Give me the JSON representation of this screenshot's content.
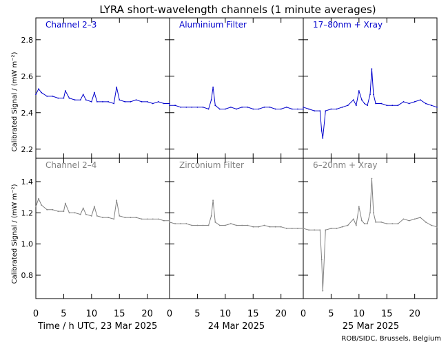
{
  "title": "LYRA short-wavelength channels (1 minute averages)",
  "ylabel": "Calibrated Signal  / (mW m⁻²)",
  "credit": "ROB/SIDC, Brussels, Belgium",
  "colors": {
    "top": "#0000cc",
    "bottom": "#808080",
    "axis": "#000000"
  },
  "rows": [
    {
      "ylim": [
        2.15,
        2.92
      ],
      "yticks": [
        "2.2",
        "2.4",
        "2.6",
        "2.8"
      ],
      "ytick_values": [
        2.2,
        2.4,
        2.6,
        2.8
      ]
    },
    {
      "ylim": [
        0.65,
        1.55
      ],
      "yticks": [
        "0.8",
        "1.0",
        "1.2",
        "1.4"
      ],
      "ytick_values": [
        0.8,
        1.0,
        1.2,
        1.4
      ]
    }
  ],
  "xticks": [
    "0",
    "5",
    "10",
    "15",
    "20"
  ],
  "xtick_values": [
    0,
    5,
    10,
    15,
    20
  ],
  "days": [
    "Time / h UTC, 23 Mar 2025",
    "24 Mar 2025",
    "25 Mar 2025"
  ],
  "chart_data": {
    "type": "scatter",
    "xlabel": "Time / h UTC, 23 Mar 2025",
    "xlim": [
      0,
      24
    ],
    "panels": [
      {
        "name": "Channel 2–3",
        "day": "23 Mar 2025",
        "row": 0,
        "col": 0,
        "x": [
          0,
          0.5,
          1,
          2,
          3,
          4,
          5,
          5.3,
          6,
          7,
          8,
          8.5,
          9,
          10,
          10.5,
          11,
          12,
          13,
          14,
          14.5,
          15,
          16,
          17,
          18,
          19,
          20,
          21,
          22,
          23,
          24
        ],
        "y": [
          2.5,
          2.53,
          2.51,
          2.49,
          2.49,
          2.48,
          2.48,
          2.52,
          2.48,
          2.47,
          2.47,
          2.5,
          2.47,
          2.46,
          2.51,
          2.46,
          2.46,
          2.46,
          2.45,
          2.54,
          2.47,
          2.46,
          2.46,
          2.47,
          2.46,
          2.46,
          2.45,
          2.46,
          2.45,
          2.45
        ]
      },
      {
        "name": "Aluminium Filter",
        "day": "24 Mar 2025",
        "row": 0,
        "col": 1,
        "x": [
          0,
          1,
          2,
          3,
          4,
          5,
          6,
          7,
          7.5,
          7.8,
          8.2,
          9,
          10,
          11,
          12,
          13,
          14,
          15,
          16,
          17,
          18,
          19,
          20,
          21,
          22,
          23,
          24
        ],
        "y": [
          2.44,
          2.44,
          2.43,
          2.43,
          2.43,
          2.43,
          2.43,
          2.42,
          2.47,
          2.54,
          2.44,
          2.42,
          2.42,
          2.43,
          2.42,
          2.43,
          2.43,
          2.42,
          2.42,
          2.43,
          2.43,
          2.42,
          2.42,
          2.43,
          2.42,
          2.42,
          2.42
        ]
      },
      {
        "name": "17–80nm + Xray",
        "day": "25 Mar 2025",
        "row": 0,
        "col": 2,
        "x": [
          0,
          1,
          2,
          3,
          3.3,
          3.5,
          4,
          5,
          6,
          7,
          8,
          9,
          9.5,
          10,
          10.5,
          11,
          11.5,
          12,
          12.3,
          12.6,
          13,
          14,
          15,
          16,
          17,
          18,
          19,
          20,
          21,
          22,
          23,
          24
        ],
        "y": [
          2.43,
          2.42,
          2.41,
          2.41,
          2.3,
          2.26,
          2.41,
          2.42,
          2.42,
          2.43,
          2.44,
          2.47,
          2.44,
          2.52,
          2.47,
          2.45,
          2.44,
          2.5,
          2.64,
          2.5,
          2.45,
          2.45,
          2.44,
          2.44,
          2.44,
          2.46,
          2.45,
          2.46,
          2.47,
          2.45,
          2.44,
          2.43
        ]
      },
      {
        "name": "Channel 2–4",
        "day": "23 Mar 2025",
        "row": 1,
        "col": 0,
        "x": [
          0,
          0.5,
          1,
          2,
          3,
          4,
          5,
          5.3,
          6,
          7,
          8,
          8.5,
          9,
          10,
          10.5,
          11,
          12,
          13,
          14,
          14.5,
          15,
          16,
          17,
          18,
          19,
          20,
          21,
          22,
          23,
          24
        ],
        "y": [
          1.24,
          1.29,
          1.25,
          1.22,
          1.22,
          1.21,
          1.21,
          1.26,
          1.2,
          1.2,
          1.19,
          1.23,
          1.19,
          1.18,
          1.24,
          1.18,
          1.17,
          1.17,
          1.16,
          1.28,
          1.18,
          1.17,
          1.17,
          1.17,
          1.16,
          1.16,
          1.16,
          1.16,
          1.15,
          1.15
        ]
      },
      {
        "name": "Zirconium Filter",
        "day": "24 Mar 2025",
        "row": 1,
        "col": 1,
        "x": [
          0,
          1,
          2,
          3,
          4,
          5,
          6,
          7,
          7.5,
          7.8,
          8.2,
          9,
          10,
          11,
          12,
          13,
          14,
          15,
          16,
          17,
          18,
          19,
          20,
          21,
          22,
          23,
          24
        ],
        "y": [
          1.14,
          1.13,
          1.13,
          1.13,
          1.12,
          1.12,
          1.12,
          1.12,
          1.18,
          1.28,
          1.14,
          1.12,
          1.12,
          1.13,
          1.12,
          1.12,
          1.12,
          1.11,
          1.11,
          1.12,
          1.11,
          1.11,
          1.11,
          1.1,
          1.1,
          1.1,
          1.1
        ]
      },
      {
        "name": "6–20nm + Xray",
        "day": "25 Mar 2025",
        "row": 1,
        "col": 2,
        "x": [
          0,
          1,
          2,
          3,
          3.3,
          3.5,
          4,
          5,
          6,
          7,
          8,
          9,
          9.5,
          10,
          10.5,
          11,
          11.5,
          12,
          12.3,
          12.6,
          13,
          14,
          15,
          16,
          17,
          18,
          19,
          20,
          21,
          22,
          23,
          24
        ],
        "y": [
          1.1,
          1.09,
          1.09,
          1.09,
          0.9,
          0.7,
          1.09,
          1.1,
          1.1,
          1.11,
          1.12,
          1.16,
          1.12,
          1.24,
          1.15,
          1.13,
          1.13,
          1.2,
          1.42,
          1.2,
          1.14,
          1.14,
          1.13,
          1.13,
          1.13,
          1.16,
          1.15,
          1.16,
          1.17,
          1.14,
          1.12,
          1.11
        ]
      }
    ]
  }
}
